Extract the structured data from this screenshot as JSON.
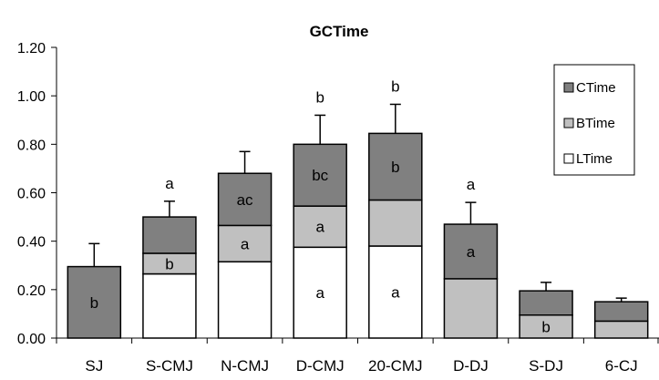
{
  "chart_data": {
    "type": "bar",
    "stacked": true,
    "title": "GCTime",
    "xlabel": "",
    "ylabel": "",
    "ylim": [
      0,
      1.2
    ],
    "yticks": [
      "0.00",
      "0.20",
      "0.40",
      "0.60",
      "0.80",
      "1.00",
      "1.20"
    ],
    "ytick_values": [
      0,
      0.2,
      0.4,
      0.6,
      0.8,
      1.0,
      1.2
    ],
    "grid": false,
    "legend_position": "top-right",
    "categories": [
      "SJ",
      "S-CMJ",
      "N-CMJ",
      "D-CMJ",
      "20-CMJ",
      "D-DJ",
      "S-DJ",
      "6-CJ"
    ],
    "series": [
      {
        "name": "LTime",
        "color": "#ffffff",
        "values": [
          0,
          0.265,
          0.315,
          0.375,
          0.38,
          0,
          0,
          0
        ],
        "labels": [
          "",
          "",
          "",
          "a",
          "a",
          "",
          "",
          ""
        ]
      },
      {
        "name": "BTime",
        "color": "#c0c0c0",
        "values": [
          0,
          0.085,
          0.15,
          0.17,
          0.19,
          0.245,
          0.095,
          0.07
        ],
        "labels": [
          "",
          "b",
          "a",
          "a",
          "",
          "",
          "b",
          ""
        ]
      },
      {
        "name": "CTime",
        "color": "#808080",
        "values": [
          0.295,
          0.15,
          0.215,
          0.255,
          0.275,
          0.225,
          0.1,
          0.08
        ],
        "labels": [
          "b",
          "",
          "ac",
          "bc",
          "b",
          "a",
          "",
          ""
        ]
      }
    ],
    "error_bars": [
      0.095,
      0.065,
      0.09,
      0.12,
      0.12,
      0.09,
      0.035,
      0.015
    ],
    "significance_labels": [
      "",
      "a",
      "",
      "b",
      "b",
      "a",
      "",
      ""
    ]
  }
}
